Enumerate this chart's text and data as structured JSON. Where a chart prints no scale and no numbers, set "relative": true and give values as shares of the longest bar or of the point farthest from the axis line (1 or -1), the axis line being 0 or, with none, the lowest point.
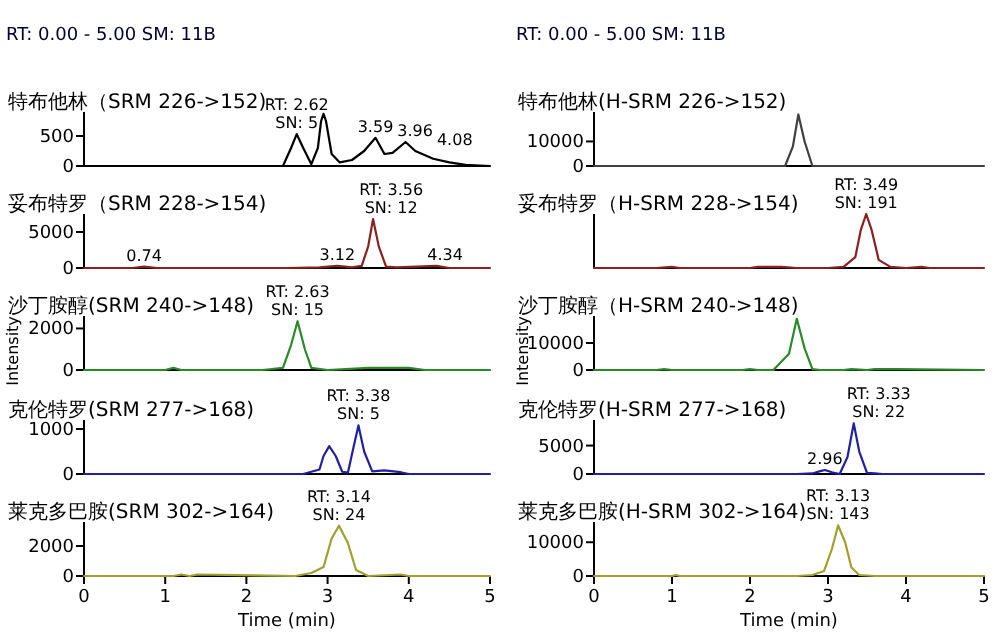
{
  "chart_data": [
    {
      "type": "line",
      "title": "RT: 0.00 - 5.00   SM: 11B",
      "xlim": [
        0,
        5
      ],
      "ylim": [
        0,
        900
      ],
      "yticks": [
        0,
        500
      ],
      "tick_labels": "y",
      "series": [
        {
          "name": "特布他林（SRM 226->152)",
          "color": "#000000",
          "x": [
            0,
            2.3,
            2.45,
            2.55,
            2.62,
            2.7,
            2.8,
            2.88,
            2.92,
            2.95,
            2.98,
            3.05,
            3.15,
            3.3,
            3.45,
            3.59,
            3.7,
            3.8,
            3.96,
            4.08,
            4.3,
            4.5,
            4.7,
            5
          ],
          "values": [
            0,
            0,
            0,
            300,
            530,
            300,
            30,
            300,
            750,
            870,
            750,
            200,
            60,
            100,
            250,
            470,
            200,
            220,
            400,
            250,
            120,
            60,
            20,
            0
          ]
        }
      ],
      "annotations": [
        {
          "text": "RT: 2.62\nSN: 5",
          "x": 2.62,
          "y": 530
        },
        {
          "text": "3.59",
          "x": 3.59,
          "y": 470
        },
        {
          "text": "3.96",
          "x": 3.96,
          "y": 400
        },
        {
          "text": "4.08",
          "x": 4.08,
          "y": 250
        }
      ]
    },
    {
      "type": "line",
      "xlim": [
        0,
        5
      ],
      "ylim": [
        0,
        7500
      ],
      "yticks": [
        0,
        5000
      ],
      "tick_labels": "y",
      "series": [
        {
          "name": "妥布特罗（SRM 228->154)",
          "color": "#8b2020",
          "x": [
            0,
            0.6,
            0.74,
            0.9,
            2.5,
            2.9,
            3.12,
            3.3,
            3.42,
            3.5,
            3.56,
            3.63,
            3.72,
            3.85,
            4.1,
            4.34,
            4.5,
            5
          ],
          "values": [
            0,
            0,
            200,
            0,
            0,
            100,
            300,
            100,
            300,
            3000,
            6800,
            3000,
            200,
            100,
            200,
            300,
            0,
            0
          ]
        }
      ],
      "annotations": [
        {
          "text": "0.74",
          "x": 0.74,
          "y": 200
        },
        {
          "text": "3.12",
          "x": 3.12,
          "y": 300
        },
        {
          "text": "RT: 3.56\nSN: 12",
          "x": 3.56,
          "y": 6800
        },
        {
          "text": "4.34",
          "x": 4.34,
          "y": 300
        }
      ]
    },
    {
      "type": "line",
      "xlim": [
        0,
        5
      ],
      "ylim": [
        0,
        2600
      ],
      "yticks": [
        0,
        2000
      ],
      "tick_labels": "y",
      "ylabel": "Intensity",
      "series": [
        {
          "name": "沙丁胺醇(SRM 240->148)",
          "color": "#2a8a2a",
          "x": [
            0,
            1.0,
            1.1,
            1.2,
            2.2,
            2.45,
            2.55,
            2.63,
            2.72,
            2.8,
            3.0,
            3.5,
            4.0,
            4.2,
            5
          ],
          "values": [
            0,
            0,
            100,
            0,
            0,
            100,
            1200,
            2350,
            1000,
            100,
            0,
            100,
            100,
            0,
            0
          ]
        }
      ],
      "annotations": [
        {
          "text": "RT: 2.63\nSN: 15",
          "x": 2.63,
          "y": 2350
        }
      ]
    },
    {
      "type": "line",
      "xlim": [
        0,
        5
      ],
      "ylim": [
        0,
        1200
      ],
      "yticks": [
        0,
        1000
      ],
      "tick_labels": "y",
      "series": [
        {
          "name": "克伦特罗(SRM 277->168)",
          "color": "#2020a0",
          "x": [
            0,
            2.7,
            2.9,
            2.95,
            3.02,
            3.1,
            3.18,
            3.25,
            3.32,
            3.38,
            3.45,
            3.55,
            3.7,
            3.9,
            4.0,
            5
          ],
          "values": [
            0,
            0,
            100,
            400,
            620,
            400,
            50,
            30,
            600,
            1080,
            500,
            60,
            80,
            40,
            0,
            0
          ]
        }
      ],
      "annotations": [
        {
          "text": "RT: 3.38\nSN: 5",
          "x": 3.38,
          "y": 1080
        }
      ]
    },
    {
      "type": "line",
      "xlim": [
        0,
        5
      ],
      "ylim": [
        0,
        3600
      ],
      "yticks": [
        0,
        2000
      ],
      "xticks": [
        0,
        1,
        2,
        3,
        4,
        5
      ],
      "xlabel": "Time (min)",
      "series": [
        {
          "name": "莱克多巴胺(SRM 302->164)",
          "color": "#a0a030",
          "x": [
            0,
            1.1,
            1.2,
            1.3,
            1.4,
            2.6,
            2.8,
            2.95,
            3.05,
            3.14,
            3.25,
            3.35,
            3.5,
            3.9,
            4.0,
            5
          ],
          "values": [
            0,
            0,
            100,
            0,
            100,
            0,
            200,
            600,
            2500,
            3350,
            2200,
            400,
            0,
            100,
            0,
            0
          ]
        }
      ],
      "annotations": [
        {
          "text": "RT: 3.14\nSN: 24",
          "x": 3.14,
          "y": 3350
        }
      ]
    },
    {
      "type": "line",
      "title": "RT: 0.00 - 5.00   SM: 11B",
      "xlim": [
        0,
        5
      ],
      "ylim": [
        0,
        22000
      ],
      "yticks": [
        0,
        10000
      ],
      "tick_labels": "y",
      "series": [
        {
          "name": "特布他林(H-SRM 226->152)",
          "color": "#404040",
          "x": [
            0,
            2.3,
            2.45,
            2.55,
            2.62,
            2.7,
            2.8,
            2.95,
            5
          ],
          "values": [
            0,
            0,
            0,
            8000,
            21000,
            10000,
            0,
            0,
            0
          ]
        }
      ]
    },
    {
      "type": "line",
      "relative": true,
      "xlim": [
        0,
        5
      ],
      "tick_labels": false,
      "series": [
        {
          "name": "妥布特罗（H-SRM 228->154)",
          "color": "#8b2020",
          "x": [
            0,
            0.8,
            1.0,
            1.1,
            2.0,
            2.1,
            2.4,
            2.6,
            3.0,
            3.2,
            3.35,
            3.42,
            3.49,
            3.56,
            3.65,
            3.8,
            4.0,
            4.2,
            4.3,
            5
          ],
          "values": [
            0,
            0,
            0.02,
            0,
            0,
            0.02,
            0.02,
            0,
            0,
            0.02,
            0.2,
            0.7,
            1,
            0.7,
            0.15,
            0.02,
            0,
            0.02,
            0,
            0
          ]
        }
      ],
      "annotations": [
        {
          "text": "RT: 3.49\nSN: 191",
          "x": 3.49,
          "y": 1
        }
      ]
    },
    {
      "type": "line",
      "xlim": [
        0,
        5
      ],
      "ylim": [
        0,
        20000
      ],
      "yticks": [
        0,
        10000
      ],
      "tick_labels": "y",
      "ylabel": "Intensity",
      "series": [
        {
          "name": "沙丁胺醇（H-SRM 240->148)",
          "color": "#2a8a2a",
          "x": [
            0,
            0.8,
            0.9,
            1.0,
            1.9,
            2.0,
            2.1,
            2.3,
            2.5,
            2.6,
            2.7,
            2.8,
            2.9,
            3.2,
            3.3,
            3.5,
            3.6,
            3.9,
            5
          ],
          "values": [
            0,
            0,
            300,
            0,
            0,
            300,
            0,
            0,
            6000,
            19000,
            8000,
            300,
            0,
            0,
            300,
            0,
            300,
            300,
            0
          ]
        }
      ]
    },
    {
      "type": "line",
      "xlim": [
        0,
        5
      ],
      "ylim": [
        0,
        9500
      ],
      "yticks": [
        0,
        5000
      ],
      "tick_labels": "y",
      "series": [
        {
          "name": "克伦特罗(H-SRM 277->168)",
          "color": "#2020a0",
          "x": [
            0,
            2.6,
            2.8,
            2.9,
            2.96,
            3.05,
            3.15,
            3.25,
            3.33,
            3.4,
            3.5,
            3.6,
            3.7,
            5
          ],
          "values": [
            0,
            0,
            100,
            500,
            700,
            300,
            0,
            3000,
            8900,
            4000,
            200,
            100,
            0,
            0
          ]
        }
      ],
      "annotations": [
        {
          "text": "2.96",
          "x": 2.96,
          "y": 700
        },
        {
          "text": "RT: 3.33\nSN: 22",
          "x": 3.33,
          "y": 8900
        }
      ]
    },
    {
      "type": "line",
      "xlim": [
        0,
        5
      ],
      "ylim": [
        0,
        16000
      ],
      "yticks": [
        0,
        10000
      ],
      "xticks": [
        0,
        1,
        2,
        3,
        4,
        5
      ],
      "xlabel": "Time (min)",
      "series": [
        {
          "name": "莱克多巴胺(H-SRM 302->164)",
          "color": "#a0a030",
          "x": [
            0,
            1.0,
            1.05,
            1.1,
            2.6,
            2.8,
            2.95,
            3.05,
            3.13,
            3.22,
            3.3,
            3.4,
            3.6,
            5
          ],
          "values": [
            0,
            0,
            300,
            0,
            0,
            300,
            1500,
            8000,
            15000,
            10000,
            2500,
            300,
            0,
            0
          ]
        }
      ],
      "annotations": [
        {
          "text": "RT: 3.13\nSN: 143",
          "x": 3.13,
          "y": 15000
        }
      ]
    }
  ]
}
